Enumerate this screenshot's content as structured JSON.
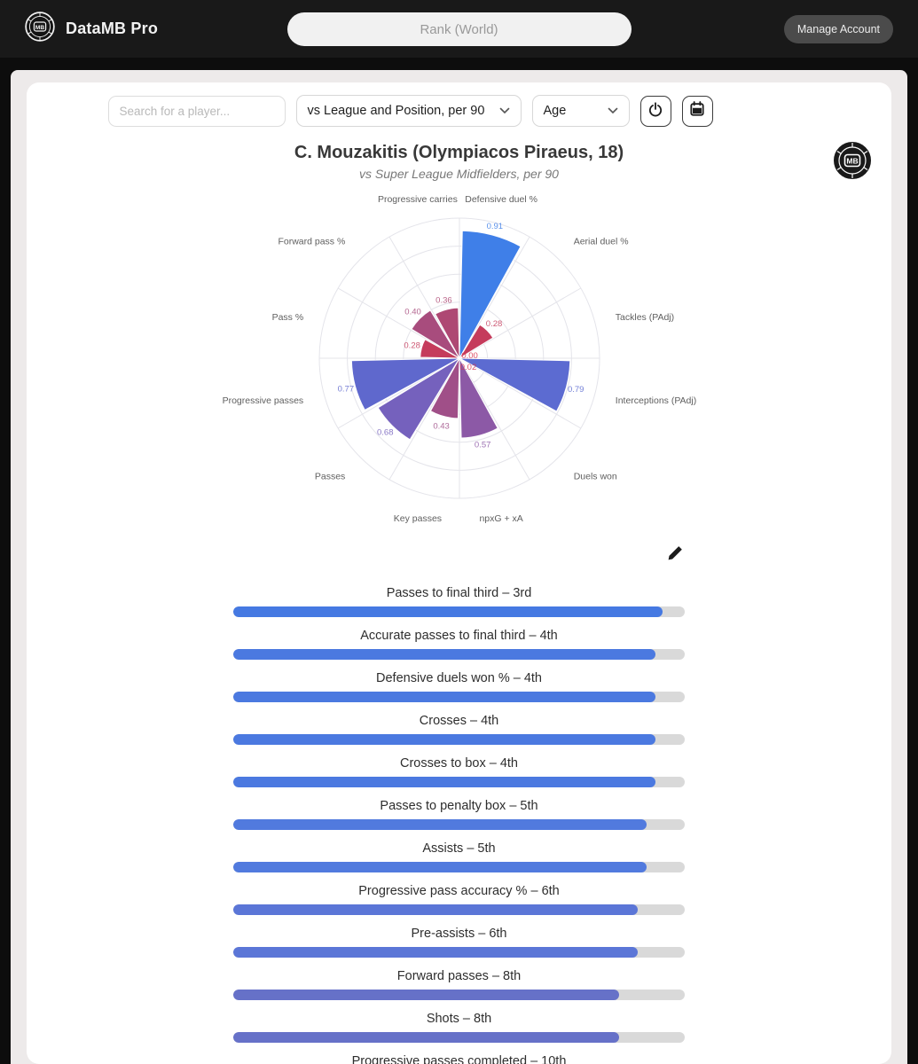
{
  "navbar": {
    "brand": "DataMB Pro",
    "center_pill": "Rank (World)",
    "manage_account": "Manage Account",
    "logo_icon": "mb-ball-logo"
  },
  "toolbar": {
    "search_placeholder": "Search for a player...",
    "mode_select_value": "vs League and Position, per 90",
    "age_select_value": "Age",
    "icons": [
      "timer-icon",
      "calendar-icon",
      "chevron-down-icon"
    ]
  },
  "player": {
    "title": "C. Mouzakitis (Olympiacos Piraeus, 18)",
    "subtitle": "vs Super League Midfielders, per 90"
  },
  "chart_data": {
    "type": "bar",
    "variant": "polar-rose, clockwise from top, 12 sectors of 30deg",
    "categories": [
      "Defensive duel %",
      "Aerial duel %",
      "Tackles (PAdj)",
      "Interceptions (PAdj)",
      "Duels won",
      "npxG + xA",
      "Key passes",
      "Passes",
      "Progressive passes",
      "Pass %",
      "Forward pass %",
      "Progressive carries"
    ],
    "values": [
      0.91,
      0.28,
      0.0,
      0.79,
      0.02,
      0.57,
      0.43,
      0.68,
      0.77,
      0.28,
      0.4,
      0.36
    ],
    "colors": [
      "#3f7fe8",
      "#c53c5c",
      "#da334d",
      "#5c6bd1",
      "#d8344f",
      "#8c59a6",
      "#a04f88",
      "#7561bd",
      "#5f68cd",
      "#c53c5c",
      "#a84c7d",
      "#ae4873"
    ],
    "rlim": [
      0,
      1
    ],
    "rings": 5,
    "grid_color": "#e4e4ea",
    "label_color": "#5f5f5f",
    "title": "",
    "xlabel": "",
    "ylabel": ""
  },
  "ranks": {
    "edit_icon": "pencil-icon",
    "bars": [
      {
        "label": "Passes to final third – 3rd",
        "fill_pct": 95,
        "color": "#4579e2"
      },
      {
        "label": "Accurate passes to final third – 4th",
        "fill_pct": 93.5,
        "color": "#4b79e0"
      },
      {
        "label": "Defensive duels won % – 4th",
        "fill_pct": 93.5,
        "color": "#4b79e0"
      },
      {
        "label": "Crosses – 4th",
        "fill_pct": 93.5,
        "color": "#4b79e0"
      },
      {
        "label": "Crosses to box – 4th",
        "fill_pct": 93.5,
        "color": "#4b79e0"
      },
      {
        "label": "Passes to penalty box – 5th",
        "fill_pct": 91.5,
        "color": "#517ade"
      },
      {
        "label": "Assists – 5th",
        "fill_pct": 91.5,
        "color": "#517ade"
      },
      {
        "label": "Progressive pass accuracy % – 6th",
        "fill_pct": 89.5,
        "color": "#5b76d7"
      },
      {
        "label": "Pre-assists – 6th",
        "fill_pct": 89.5,
        "color": "#5b76d7"
      },
      {
        "label": "Forward passes – 8th",
        "fill_pct": 85.5,
        "color": "#6671c8"
      },
      {
        "label": "Shots – 8th",
        "fill_pct": 85.5,
        "color": "#6671c8"
      },
      {
        "label": "Progressive passes completed – 10th",
        "fill_pct": 81,
        "color": "#7866bb"
      }
    ],
    "track_color": "#d9d9d9"
  }
}
